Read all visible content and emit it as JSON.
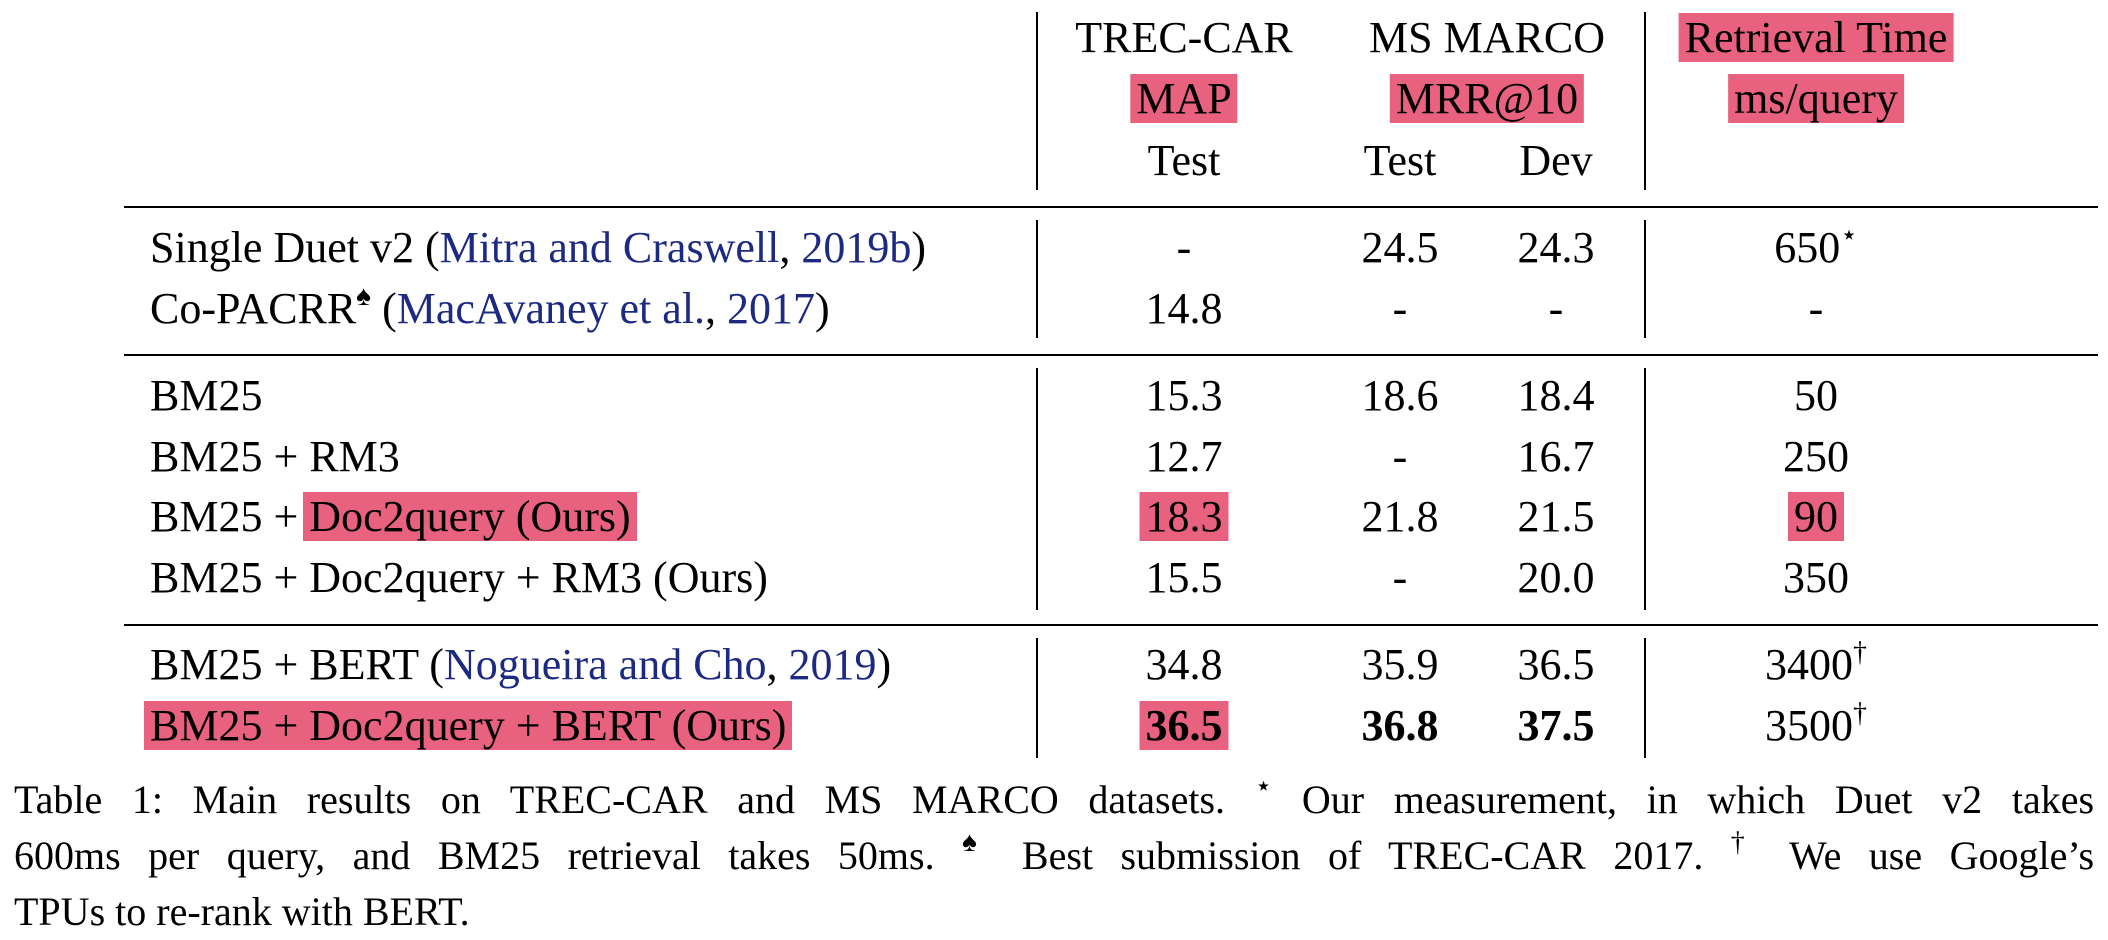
{
  "table": {
    "header": {
      "trec_car": "TREC-CAR",
      "ms_marco": "MS MARCO",
      "retrieval_time": "Retrieval Time",
      "map": "MAP",
      "mrr": "MRR@10",
      "ms_per_query": "ms/query",
      "test1": "Test",
      "test2": "Test",
      "dev": "Dev"
    },
    "rows": [
      {
        "method": "Single Duet v2 (",
        "cite_a": "Mitra and Craswell",
        "sep": ", ",
        "cite_b": "2019b",
        "close": ")",
        "trec_test": "-",
        "ms_test": "24.5",
        "ms_dev": "24.3",
        "time": "650",
        "time_mark": "⋆"
      },
      {
        "method": "Co-PACRR",
        "method_mark": "♠",
        "open": " (",
        "cite_a": "MacAvaney et al.",
        "sep": ", ",
        "cite_b": "2017",
        "close": ")",
        "trec_test": "14.8",
        "ms_test": "-",
        "ms_dev": "-",
        "time": "-"
      },
      {
        "method": "BM25",
        "trec_test": "15.3",
        "ms_test": "18.6",
        "ms_dev": "18.4",
        "time": "50"
      },
      {
        "method": "BM25 + RM3",
        "trec_test": "12.7",
        "ms_test": "-",
        "ms_dev": "16.7",
        "time": "250"
      },
      {
        "method": "BM25 + ",
        "method_hl": "Doc2query (Ours)",
        "trec_test": "18.3",
        "ms_test": "21.8",
        "ms_dev": "21.5",
        "time": "90"
      },
      {
        "method": "BM25 + Doc2query + RM3 (Ours)",
        "trec_test": "15.5",
        "ms_test": "-",
        "ms_dev": "20.0",
        "time": "350"
      },
      {
        "method": "BM25 + BERT (",
        "cite_a": "Nogueira and Cho",
        "sep": ", ",
        "cite_b": "2019",
        "close": ")",
        "trec_test": "34.8",
        "ms_test": "35.9",
        "ms_dev": "36.5",
        "time": "3400",
        "time_mark": "†"
      },
      {
        "method": "BM25 + Doc2query + BERT (Ours)",
        "trec_test": "36.5",
        "ms_test": "36.8",
        "ms_dev": "37.5",
        "time": "3500",
        "time_mark": "†"
      }
    ]
  },
  "caption": {
    "line1_a": "Table 1:  Main results on TREC-CAR and MS MARCO datasets.",
    "star": "⋆",
    "line1_b": "Our measurement, in which Duet v2 takes",
    "line2_a": "600ms per query, and BM25 retrieval takes 50ms.",
    "spade": "♠",
    "line2_b": "Best submission of TREC-CAR 2017.",
    "dagger": "†",
    "line2_c": "We use Google’s",
    "line3": "TPUs to re-rank with BERT."
  },
  "colors": {
    "highlight": "#e8617f",
    "citation": "#1d2a82"
  }
}
